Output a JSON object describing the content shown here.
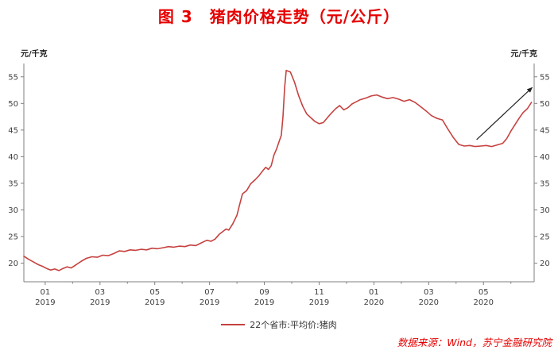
{
  "title": "图 3　猪肉价格走势（元/公斤）",
  "source_note": "数据来源：Wind，苏宁金融研究院",
  "colors": {
    "title": "#e60000",
    "line": "#c5423f",
    "source": "#e60000",
    "axis": "#7f7f7f",
    "text": "#404040",
    "arrow": "#222222"
  },
  "chart_data": {
    "type": "line",
    "title": "图 3　猪肉价格走势（元/公斤）",
    "ylabel": "元/千克",
    "unit_label_left": "元/千克",
    "unit_label_right": "元/千克",
    "legend": "22个省市:平均价:猪肉",
    "legend_position": "bottom-center",
    "grid": false,
    "ylim": [
      16.5,
      57.5
    ],
    "yticks": [
      20,
      25,
      30,
      35,
      40,
      45,
      50,
      55
    ],
    "xlim": [
      -0.78,
      17.85
    ],
    "xticks": [
      {
        "m": 0,
        "month": "01",
        "year": "2019"
      },
      {
        "m": 2,
        "month": "03",
        "year": "2019"
      },
      {
        "m": 4,
        "month": "05",
        "year": "2019"
      },
      {
        "m": 6,
        "month": "07",
        "year": "2019"
      },
      {
        "m": 8,
        "month": "09",
        "year": "2019"
      },
      {
        "m": 10,
        "month": "11",
        "year": "2019"
      },
      {
        "m": 12,
        "month": "01",
        "year": "2020"
      },
      {
        "m": 14,
        "month": "03",
        "year": "2020"
      },
      {
        "m": 16,
        "month": "05",
        "year": "2020"
      }
    ],
    "series": [
      {
        "name": "22个省市:平均价:猪肉",
        "color": "#c5423f",
        "points": [
          [
            -0.78,
            21.3
          ],
          [
            -0.6,
            20.7
          ],
          [
            -0.42,
            20.2
          ],
          [
            -0.25,
            19.7
          ],
          [
            -0.1,
            19.4
          ],
          [
            0.05,
            19.0
          ],
          [
            0.2,
            18.7
          ],
          [
            0.35,
            18.9
          ],
          [
            0.5,
            18.6
          ],
          [
            0.65,
            19.0
          ],
          [
            0.8,
            19.3
          ],
          [
            0.95,
            19.1
          ],
          [
            1.1,
            19.6
          ],
          [
            1.3,
            20.3
          ],
          [
            1.5,
            20.9
          ],
          [
            1.7,
            21.2
          ],
          [
            1.9,
            21.1
          ],
          [
            2.1,
            21.5
          ],
          [
            2.3,
            21.4
          ],
          [
            2.5,
            21.8
          ],
          [
            2.7,
            22.3
          ],
          [
            2.9,
            22.2
          ],
          [
            3.1,
            22.5
          ],
          [
            3.3,
            22.4
          ],
          [
            3.5,
            22.6
          ],
          [
            3.7,
            22.5
          ],
          [
            3.9,
            22.8
          ],
          [
            4.1,
            22.7
          ],
          [
            4.3,
            22.9
          ],
          [
            4.5,
            23.1
          ],
          [
            4.7,
            23.0
          ],
          [
            4.9,
            23.2
          ],
          [
            5.1,
            23.1
          ],
          [
            5.3,
            23.4
          ],
          [
            5.5,
            23.3
          ],
          [
            5.7,
            23.8
          ],
          [
            5.9,
            24.3
          ],
          [
            6.05,
            24.1
          ],
          [
            6.2,
            24.5
          ],
          [
            6.35,
            25.4
          ],
          [
            6.5,
            26.0
          ],
          [
            6.6,
            26.4
          ],
          [
            6.7,
            26.2
          ],
          [
            6.85,
            27.4
          ],
          [
            7.0,
            29.0
          ],
          [
            7.1,
            31.0
          ],
          [
            7.2,
            33.0
          ],
          [
            7.35,
            33.6
          ],
          [
            7.5,
            34.9
          ],
          [
            7.65,
            35.6
          ],
          [
            7.8,
            36.4
          ],
          [
            7.95,
            37.4
          ],
          [
            8.05,
            38.0
          ],
          [
            8.15,
            37.6
          ],
          [
            8.25,
            38.3
          ],
          [
            8.35,
            40.3
          ],
          [
            8.45,
            41.5
          ],
          [
            8.55,
            43.0
          ],
          [
            8.62,
            44.0
          ],
          [
            8.68,
            47.5
          ],
          [
            8.74,
            53.0
          ],
          [
            8.8,
            56.2
          ],
          [
            8.95,
            55.9
          ],
          [
            9.1,
            54.0
          ],
          [
            9.25,
            51.5
          ],
          [
            9.4,
            49.5
          ],
          [
            9.55,
            48.0
          ],
          [
            9.7,
            47.3
          ],
          [
            9.85,
            46.6
          ],
          [
            10.0,
            46.2
          ],
          [
            10.15,
            46.4
          ],
          [
            10.3,
            47.3
          ],
          [
            10.45,
            48.2
          ],
          [
            10.6,
            49.0
          ],
          [
            10.75,
            49.6
          ],
          [
            10.9,
            48.8
          ],
          [
            11.05,
            49.2
          ],
          [
            11.2,
            49.9
          ],
          [
            11.35,
            50.3
          ],
          [
            11.5,
            50.7
          ],
          [
            11.7,
            51.0
          ],
          [
            11.9,
            51.4
          ],
          [
            12.1,
            51.6
          ],
          [
            12.3,
            51.2
          ],
          [
            12.5,
            50.9
          ],
          [
            12.7,
            51.1
          ],
          [
            12.9,
            50.8
          ],
          [
            13.1,
            50.4
          ],
          [
            13.3,
            50.7
          ],
          [
            13.5,
            50.2
          ],
          [
            13.7,
            49.4
          ],
          [
            13.9,
            48.6
          ],
          [
            14.1,
            47.7
          ],
          [
            14.3,
            47.2
          ],
          [
            14.5,
            46.9
          ],
          [
            14.7,
            45.2
          ],
          [
            14.9,
            43.6
          ],
          [
            15.1,
            42.3
          ],
          [
            15.3,
            42.0
          ],
          [
            15.5,
            42.1
          ],
          [
            15.7,
            41.9
          ],
          [
            15.9,
            42.0
          ],
          [
            16.1,
            42.1
          ],
          [
            16.3,
            41.9
          ],
          [
            16.5,
            42.2
          ],
          [
            16.7,
            42.5
          ],
          [
            16.85,
            43.4
          ],
          [
            17.0,
            44.8
          ],
          [
            17.15,
            46.0
          ],
          [
            17.3,
            47.2
          ],
          [
            17.45,
            48.3
          ],
          [
            17.6,
            49.0
          ],
          [
            17.75,
            50.2
          ]
        ]
      }
    ],
    "annotation_arrow": {
      "from": [
        15.75,
        43.2
      ],
      "to": [
        17.78,
        53.0
      ]
    }
  }
}
